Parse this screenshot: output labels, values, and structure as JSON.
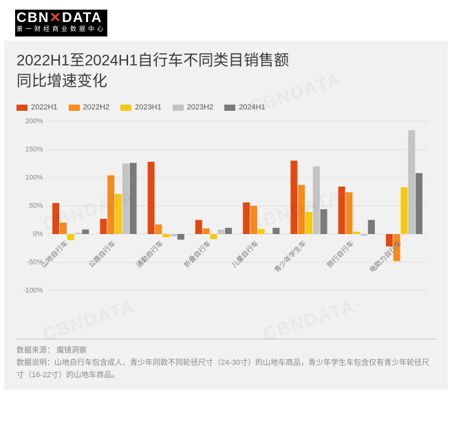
{
  "logo": {
    "main_pre": "CBN",
    "main_x": "✕",
    "main_post": "DATA",
    "sub": "第一财经商业数据中心"
  },
  "title_line1": "2022H1至2024H1自行车不同类目销售额",
  "title_line2": "同比增速变化",
  "legend": [
    {
      "label": "2022H1",
      "color": "#e24912"
    },
    {
      "label": "2022H2",
      "color": "#f58b1f"
    },
    {
      "label": "2023H1",
      "color": "#f6c90e"
    },
    {
      "label": "2023H2",
      "color": "#c4c4c4"
    },
    {
      "label": "2024H1",
      "color": "#7a7a7a"
    }
  ],
  "chart": {
    "type": "bar",
    "y_min": -100,
    "y_max": 200,
    "y_tick_step": 50,
    "y_suffix": "%",
    "grid_color": "#d0d0d0",
    "background_color": "#f1f1f1",
    "plot_bg": "#f1f1f1",
    "axis_label_color": "#888888",
    "cat_label_color": "#777777",
    "bar_group_width": 0.78,
    "categories": [
      "山地自行车",
      "公路自行车",
      "通勤自行车",
      "折叠自行车",
      "儿童自行车",
      "青少年学生车",
      "旅行自行车",
      "电助力自行车"
    ],
    "series": [
      {
        "name": "2022H1",
        "color": "#e24912",
        "values": [
          55,
          27,
          128,
          25,
          56,
          130,
          84,
          -22
        ]
      },
      {
        "name": "2022H2",
        "color": "#f58b1f",
        "values": [
          20,
          104,
          17,
          10,
          50,
          87,
          74,
          -48
        ]
      },
      {
        "name": "2023H1",
        "color": "#f6c90e",
        "values": [
          -11,
          71,
          -6,
          -9,
          9,
          39,
          4,
          83
        ]
      },
      {
        "name": "2023H2",
        "color": "#c4c4c4",
        "values": [
          2,
          125,
          -4,
          8,
          1,
          120,
          -3,
          184
        ]
      },
      {
        "name": "2024H1",
        "color": "#7a7a7a",
        "values": [
          8,
          126,
          -10,
          11,
          11,
          44,
          25,
          108
        ]
      }
    ]
  },
  "footer": {
    "source_label": "数据来源：",
    "source_value": "魔镜洞察",
    "note_label": "数据说明：",
    "note_value": "山地自行车包含成人、青少年同款不同轮径尺寸（24-30寸）的山地车商品，青少年学生车包含仅有青少年轮径尺寸（16-22寸）的山地车商品。"
  },
  "watermark_text": "CBNDATA"
}
